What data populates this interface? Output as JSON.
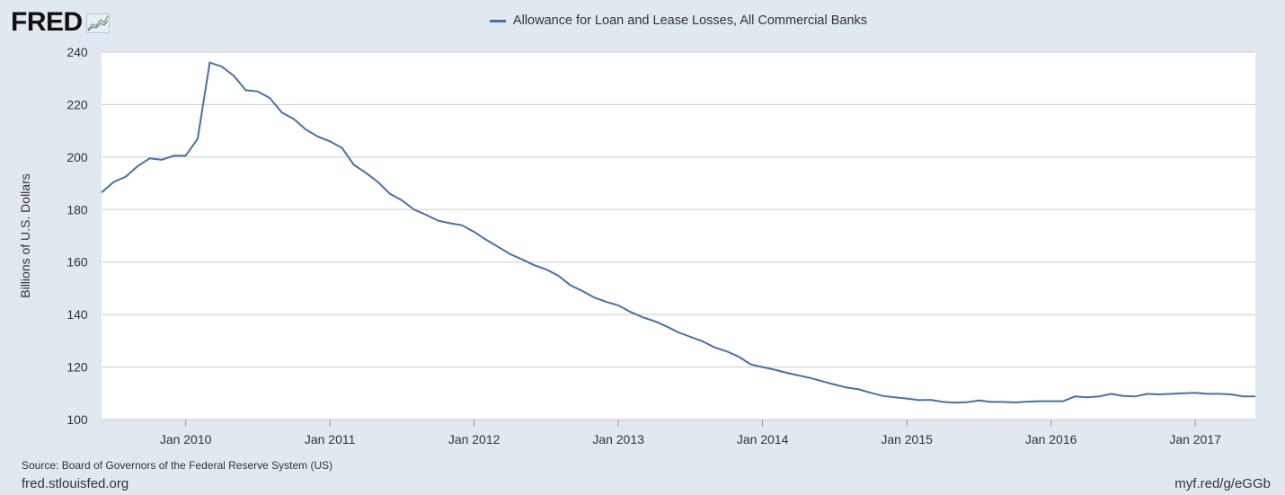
{
  "logo": {
    "text": "FRED"
  },
  "footer": {
    "source": "Source: Board of Governors of the Federal Reserve System (US)",
    "site": "fred.stlouisfed.org",
    "shortlink": "myf.red/g/eGGb"
  },
  "colors": {
    "series": "#4572a7",
    "background": "#e1e9f0",
    "plot": "#ffffff",
    "grid": "#cccccc"
  },
  "chart_data": {
    "type": "line",
    "title": "",
    "xlabel": "",
    "ylabel": "Billions of U.S. Dollars",
    "ylim": [
      100,
      240
    ],
    "yticks": [
      100,
      120,
      140,
      160,
      180,
      200,
      220,
      240
    ],
    "xlim": [
      "2009-06-01",
      "2017-06-01"
    ],
    "xticks": [
      "Jan 2010",
      "Jan 2011",
      "Jan 2012",
      "Jan 2013",
      "Jan 2014",
      "Jan 2015",
      "Jan 2016",
      "Jan 2017"
    ],
    "grid": true,
    "legend_position": "top-center",
    "series": [
      {
        "name": "Allowance for Loan and Lease Losses, All Commercial Banks",
        "x": [
          "2009-06",
          "2009-07",
          "2009-08",
          "2009-09",
          "2009-10",
          "2009-11",
          "2009-12",
          "2010-01",
          "2010-02",
          "2010-03",
          "2010-04",
          "2010-05",
          "2010-06",
          "2010-07",
          "2010-08",
          "2010-09",
          "2010-10",
          "2010-11",
          "2010-12",
          "2011-01",
          "2011-02",
          "2011-03",
          "2011-04",
          "2011-05",
          "2011-06",
          "2011-07",
          "2011-08",
          "2011-09",
          "2011-10",
          "2011-11",
          "2011-12",
          "2012-01",
          "2012-02",
          "2012-03",
          "2012-04",
          "2012-05",
          "2012-06",
          "2012-07",
          "2012-08",
          "2012-09",
          "2012-10",
          "2012-11",
          "2012-12",
          "2013-01",
          "2013-02",
          "2013-03",
          "2013-04",
          "2013-05",
          "2013-06",
          "2013-07",
          "2013-08",
          "2013-09",
          "2013-10",
          "2013-11",
          "2013-12",
          "2014-01",
          "2014-02",
          "2014-03",
          "2014-04",
          "2014-05",
          "2014-06",
          "2014-07",
          "2014-08",
          "2014-09",
          "2014-10",
          "2014-11",
          "2014-12",
          "2015-01",
          "2015-02",
          "2015-03",
          "2015-04",
          "2015-05",
          "2015-06",
          "2015-07",
          "2015-08",
          "2015-09",
          "2015-10",
          "2015-11",
          "2015-12",
          "2016-01",
          "2016-02",
          "2016-03",
          "2016-04",
          "2016-05",
          "2016-06",
          "2016-07",
          "2016-08",
          "2016-09",
          "2016-10",
          "2016-11",
          "2016-12",
          "2017-01",
          "2017-02",
          "2017-03",
          "2017-04",
          "2017-05",
          "2017-06"
        ],
        "values": [
          186.5,
          190.5,
          192.5,
          196.5,
          199.5,
          199.0,
          200.5,
          200.5,
          207.0,
          236.0,
          234.5,
          231.0,
          225.5,
          225.0,
          222.5,
          217.0,
          214.5,
          210.5,
          207.8,
          206.0,
          203.5,
          197.0,
          194.0,
          190.5,
          186.0,
          183.5,
          180.0,
          178.0,
          175.8,
          174.8,
          174.0,
          171.5,
          168.5,
          165.8,
          163.0,
          161.0,
          158.8,
          157.2,
          154.8,
          151.2,
          149.0,
          146.5,
          144.8,
          143.5,
          141.0,
          139.0,
          137.5,
          135.5,
          133.2,
          131.5,
          129.8,
          127.5,
          126.0,
          124.0,
          121.0,
          120.0,
          119.0,
          117.8,
          116.8,
          115.8,
          114.5,
          113.3,
          112.2,
          111.5,
          110.2,
          109.0,
          108.5,
          108.0,
          107.4,
          107.5,
          106.7,
          106.4,
          106.6,
          107.3,
          106.7,
          106.7,
          106.5,
          106.8,
          107.0,
          107.0,
          107.0,
          108.8,
          108.5,
          108.8,
          109.8,
          109.0,
          108.8,
          109.8,
          109.6,
          109.8,
          110.0,
          110.2,
          109.8,
          109.8,
          109.6,
          108.8,
          108.8
        ]
      }
    ]
  }
}
